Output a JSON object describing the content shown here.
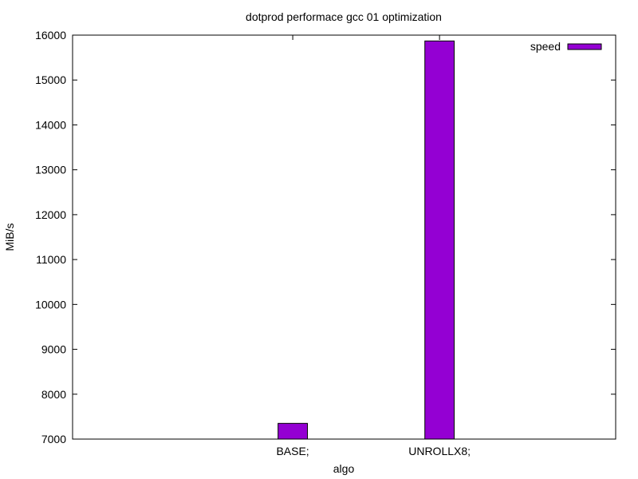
{
  "chart_data": {
    "type": "bar",
    "title": "dotprod performace gcc 01 optimization",
    "xlabel": "algo",
    "ylabel": "MiB/s",
    "categories": [
      "BASE;",
      "UNROLLX8;"
    ],
    "series": [
      {
        "name": "speed",
        "values": [
          7350,
          15870
        ],
        "color": "#9400d3"
      }
    ],
    "ylim": [
      7000,
      16000
    ],
    "yticks": [
      7000,
      8000,
      9000,
      10000,
      11000,
      12000,
      13000,
      14000,
      15000,
      16000
    ],
    "grid": false,
    "legend_position": "top-right"
  }
}
